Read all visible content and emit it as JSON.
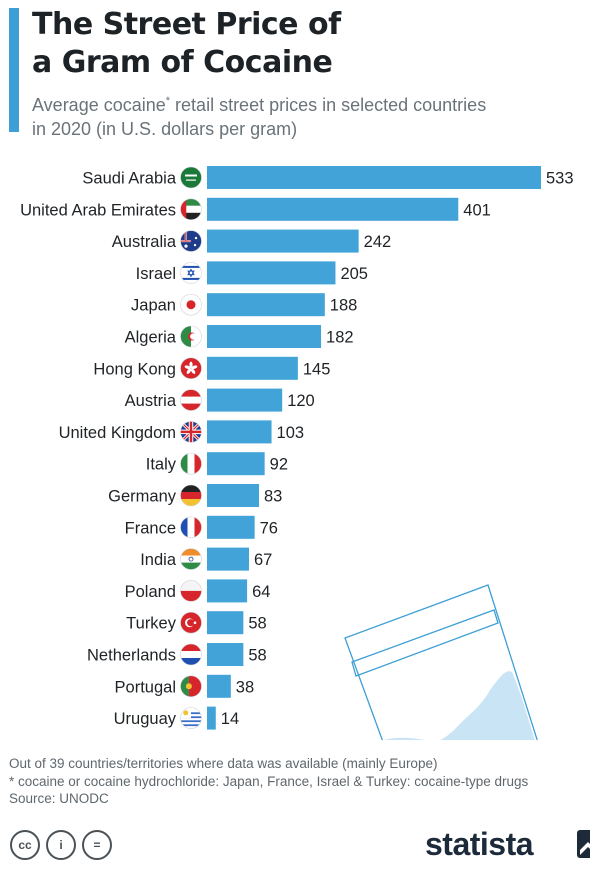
{
  "header": {
    "title_line1": "The Street Price of",
    "title_line2": "a Gram of Cocaine",
    "subtitle_a": "Average cocaine",
    "subtitle_star": "*",
    "subtitle_b": " retail street prices in selected countries",
    "subtitle_line2": "in 2020 (in U.S. dollars per gram)"
  },
  "colors": {
    "bar": "#41a3d8",
    "accent": "#3d9fd6",
    "bag": "#3d9fd6"
  },
  "chart_data": {
    "type": "bar",
    "orientation": "horizontal",
    "categories": [
      "Saudi Arabia",
      "United Arab Emirates",
      "Australia",
      "Israel",
      "Japan",
      "Algeria",
      "Hong Kong",
      "Austria",
      "United Kingdom",
      "Italy",
      "Germany",
      "France",
      "India",
      "Poland",
      "Turkey",
      "Netherlands",
      "Portugal",
      "Uruguay"
    ],
    "values": [
      533,
      401,
      242,
      205,
      188,
      182,
      145,
      120,
      103,
      92,
      83,
      76,
      67,
      64,
      58,
      58,
      38,
      14
    ],
    "flags": [
      "saudi-arabia",
      "uae",
      "australia",
      "israel",
      "japan",
      "algeria",
      "hong-kong",
      "austria",
      "united-kingdom",
      "italy",
      "germany",
      "france",
      "india",
      "poland",
      "turkey",
      "netherlands",
      "portugal",
      "uruguay"
    ],
    "xlim": [
      0,
      533
    ],
    "title": "The Street Price of a Gram of Cocaine",
    "grid": false,
    "data_labels": true
  },
  "footer": {
    "note1": "Out of 39 countries/territories where data was available (mainly Europe)",
    "note2": "* cocaine or cocaine hydrochloride: Japan, France, Israel & Turkey: cocaine-type drugs",
    "source": "Source: UNODC",
    "brand": "statista",
    "cc_icons": [
      "cc-icon",
      "by-icon",
      "nd-icon"
    ],
    "cc_glyphs": [
      "cc",
      "i",
      "="
    ]
  }
}
